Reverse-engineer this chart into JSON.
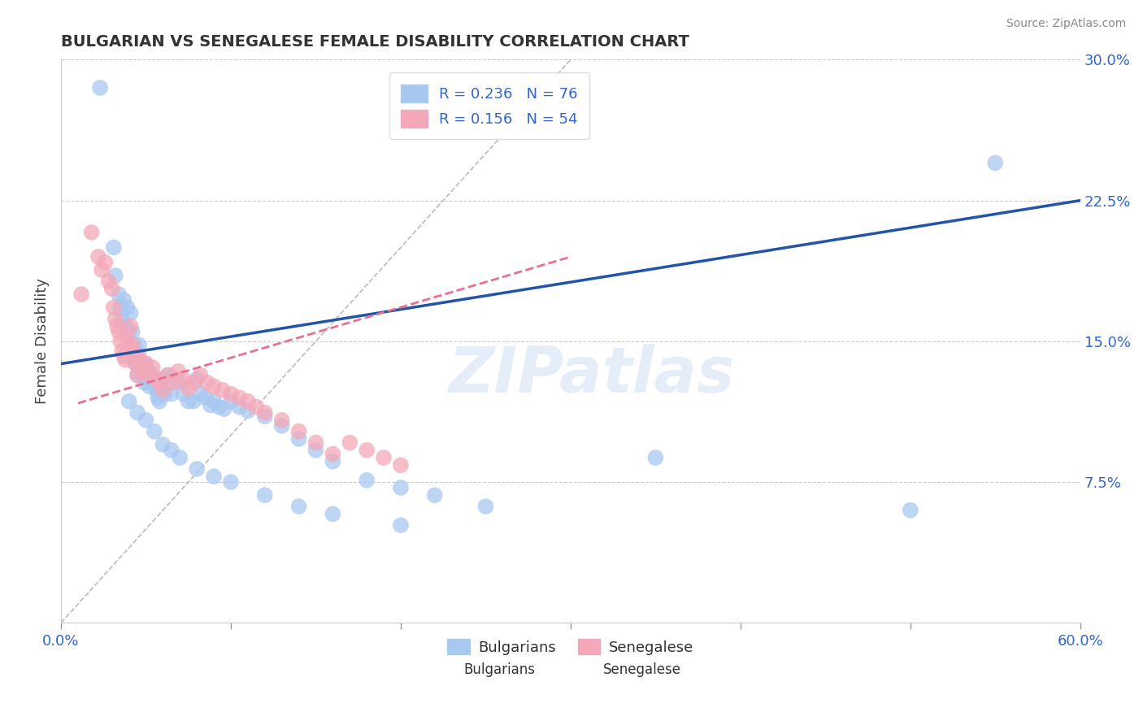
{
  "title": "BULGARIAN VS SENEGALESE FEMALE DISABILITY CORRELATION CHART",
  "source": "Source: ZipAtlas.com",
  "ylabel_text": "Female Disability",
  "xlim": [
    0.0,
    0.6
  ],
  "ylim": [
    0.0,
    0.3
  ],
  "xticks": [
    0.0,
    0.1,
    0.2,
    0.3,
    0.4,
    0.5,
    0.6
  ],
  "xticklabels": [
    "0.0%",
    "",
    "",
    "",
    "",
    "",
    "60.0%"
  ],
  "yticks": [
    0.0,
    0.075,
    0.15,
    0.225,
    0.3
  ],
  "yticklabels": [
    "",
    "7.5%",
    "15.0%",
    "22.5%",
    "30.0%"
  ],
  "blue_R": 0.236,
  "blue_N": 76,
  "pink_R": 0.156,
  "pink_N": 54,
  "blue_color": "#A8C8F0",
  "pink_color": "#F4A8B8",
  "blue_line_color": "#2255AA",
  "pink_line_color": "#E87090",
  "ref_line_color": "#BBBBBB",
  "legend_blue_label": "Bulgarians",
  "legend_pink_label": "Senegalese",
  "blue_line_x0": 0.0,
  "blue_line_y0": 0.138,
  "blue_line_x1": 0.6,
  "blue_line_y1": 0.225,
  "pink_line_x0": 0.01,
  "pink_line_y0": 0.117,
  "pink_line_x1": 0.3,
  "pink_line_y1": 0.195,
  "ref_line_x0": 0.0,
  "ref_line_y0": 0.0,
  "ref_line_x1": 0.3,
  "ref_line_y1": 0.3,
  "blue_scatter_x": [
    0.023,
    0.031,
    0.032,
    0.034,
    0.035,
    0.036,
    0.037,
    0.038,
    0.039,
    0.04,
    0.041,
    0.042,
    0.043,
    0.043,
    0.044,
    0.044,
    0.045,
    0.045,
    0.046,
    0.047,
    0.048,
    0.049,
    0.05,
    0.051,
    0.052,
    0.053,
    0.054,
    0.055,
    0.056,
    0.057,
    0.058,
    0.06,
    0.061,
    0.063,
    0.065,
    0.067,
    0.07,
    0.072,
    0.075,
    0.078,
    0.08,
    0.082,
    0.085,
    0.088,
    0.09,
    0.093,
    0.096,
    0.1,
    0.105,
    0.11,
    0.12,
    0.13,
    0.14,
    0.15,
    0.16,
    0.18,
    0.2,
    0.22,
    0.25,
    0.04,
    0.045,
    0.05,
    0.055,
    0.06,
    0.065,
    0.07,
    0.08,
    0.09,
    0.1,
    0.12,
    0.14,
    0.16,
    0.2,
    0.35,
    0.55,
    0.5
  ],
  "blue_scatter_y": [
    0.285,
    0.2,
    0.185,
    0.175,
    0.168,
    0.162,
    0.172,
    0.158,
    0.168,
    0.155,
    0.165,
    0.155,
    0.148,
    0.14,
    0.145,
    0.138,
    0.142,
    0.132,
    0.148,
    0.138,
    0.132,
    0.128,
    0.138,
    0.13,
    0.126,
    0.133,
    0.128,
    0.13,
    0.124,
    0.12,
    0.118,
    0.13,
    0.122,
    0.132,
    0.122,
    0.13,
    0.128,
    0.122,
    0.118,
    0.118,
    0.13,
    0.122,
    0.12,
    0.116,
    0.118,
    0.115,
    0.114,
    0.118,
    0.115,
    0.113,
    0.11,
    0.105,
    0.098,
    0.092,
    0.086,
    0.076,
    0.072,
    0.068,
    0.062,
    0.118,
    0.112,
    0.108,
    0.102,
    0.095,
    0.092,
    0.088,
    0.082,
    0.078,
    0.075,
    0.068,
    0.062,
    0.058,
    0.052,
    0.088,
    0.245,
    0.06
  ],
  "pink_scatter_x": [
    0.012,
    0.018,
    0.022,
    0.024,
    0.026,
    0.028,
    0.03,
    0.031,
    0.032,
    0.033,
    0.034,
    0.035,
    0.036,
    0.037,
    0.038,
    0.039,
    0.04,
    0.041,
    0.042,
    0.043,
    0.044,
    0.045,
    0.046,
    0.047,
    0.048,
    0.05,
    0.052,
    0.054,
    0.056,
    0.058,
    0.06,
    0.063,
    0.066,
    0.069,
    0.072,
    0.075,
    0.078,
    0.082,
    0.086,
    0.09,
    0.095,
    0.1,
    0.105,
    0.11,
    0.115,
    0.12,
    0.13,
    0.14,
    0.15,
    0.16,
    0.17,
    0.18,
    0.19,
    0.2
  ],
  "pink_scatter_y": [
    0.175,
    0.208,
    0.195,
    0.188,
    0.192,
    0.182,
    0.178,
    0.168,
    0.162,
    0.158,
    0.155,
    0.15,
    0.145,
    0.142,
    0.14,
    0.152,
    0.148,
    0.158,
    0.148,
    0.144,
    0.138,
    0.132,
    0.142,
    0.138,
    0.134,
    0.138,
    0.132,
    0.136,
    0.13,
    0.128,
    0.124,
    0.132,
    0.128,
    0.134,
    0.13,
    0.125,
    0.128,
    0.132,
    0.128,
    0.126,
    0.124,
    0.122,
    0.12,
    0.118,
    0.115,
    0.112,
    0.108,
    0.102,
    0.096,
    0.09,
    0.096,
    0.092,
    0.088,
    0.084
  ]
}
